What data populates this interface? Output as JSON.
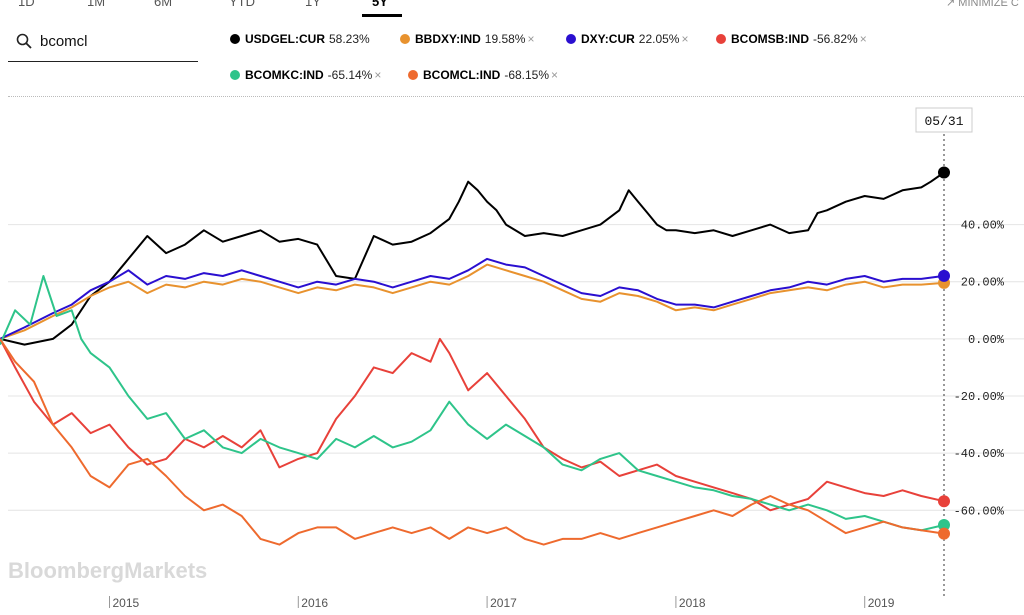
{
  "tabs": [
    {
      "label": "1D",
      "active": false
    },
    {
      "label": "1M",
      "active": false
    },
    {
      "label": "6M",
      "active": false
    },
    {
      "label": "YTD",
      "active": false
    },
    {
      "label": "1Y",
      "active": false
    },
    {
      "label": "5Y",
      "active": true
    }
  ],
  "minimize_label": "MINIMIZE C",
  "search": {
    "value": "bcomcl"
  },
  "legend": [
    {
      "ticker": "USDGEL:CUR",
      "value": "58.23%",
      "color": "#000000",
      "removable": false
    },
    {
      "ticker": "BBDXY:IND",
      "value": "19.58%",
      "color": "#e8922e",
      "removable": true
    },
    {
      "ticker": "DXY:CUR",
      "value": "22.05%",
      "color": "#2a0fd0",
      "removable": true
    },
    {
      "ticker": "BCOMSB:IND",
      "value": "-56.82%",
      "color": "#e8413a",
      "removable": true
    },
    {
      "ticker": "BCOMKC:IND",
      "value": "-65.14%",
      "color": "#2ec48a",
      "removable": true
    },
    {
      "ticker": "BCOMCL:IND",
      "value": "-68.15%",
      "color": "#ee6a2e",
      "removable": true
    }
  ],
  "close_glyph": "×",
  "watermark": "BloombergMarkets",
  "date_marker": "05/31",
  "chart_data": {
    "type": "line",
    "x_ticks": [
      {
        "label": "2015",
        "x": 2015.0
      },
      {
        "label": "2016",
        "x": 2016.0
      },
      {
        "label": "2017",
        "x": 2017.0
      },
      {
        "label": "2018",
        "x": 2018.0
      },
      {
        "label": "2019",
        "x": 2019.0
      }
    ],
    "y_ticks": [
      {
        "label": "40.00%",
        "y": 40
      },
      {
        "label": "20.00%",
        "y": 20
      },
      {
        "label": "0.00%",
        "y": 0
      },
      {
        "label": "-20.00%",
        "y": -20
      },
      {
        "label": "-40.00%",
        "y": -40
      },
      {
        "label": "-60.00%",
        "y": -60
      }
    ],
    "xlim": [
      2014.42,
      2019.42
    ],
    "ylim": [
      -90,
      85
    ],
    "grid": true,
    "series": [
      {
        "name": "USDGEL:CUR",
        "color": "#000000",
        "x": [
          2014.42,
          2014.55,
          2014.7,
          2014.8,
          2014.9,
          2015.0,
          2015.1,
          2015.2,
          2015.3,
          2015.4,
          2015.5,
          2015.6,
          2015.7,
          2015.8,
          2015.9,
          2016.0,
          2016.1,
          2016.2,
          2016.3,
          2016.4,
          2016.5,
          2016.6,
          2016.7,
          2016.8,
          2016.85,
          2016.9,
          2016.95,
          2017.0,
          2017.05,
          2017.1,
          2017.2,
          2017.3,
          2017.4,
          2017.5,
          2017.6,
          2017.7,
          2017.75,
          2017.8,
          2017.85,
          2017.9,
          2017.95,
          2018.0,
          2018.1,
          2018.2,
          2018.3,
          2018.4,
          2018.5,
          2018.6,
          2018.7,
          2018.75,
          2018.8,
          2018.9,
          2019.0,
          2019.1,
          2019.2,
          2019.3,
          2019.35,
          2019.42
        ],
        "y": [
          0,
          -2,
          0,
          5,
          15,
          20,
          28,
          36,
          30,
          33,
          38,
          34,
          36,
          38,
          34,
          35,
          33,
          22,
          21,
          36,
          33,
          34,
          37,
          42,
          48,
          55,
          52,
          48,
          45,
          40,
          36,
          37,
          36,
          38,
          40,
          45,
          52,
          48,
          44,
          40,
          38,
          38,
          37,
          38,
          36,
          38,
          40,
          37,
          38,
          44,
          45,
          48,
          50,
          49,
          52,
          53,
          55,
          58.23
        ]
      },
      {
        "name": "BBDXY:IND",
        "color": "#e8922e",
        "x": [
          2014.42,
          2014.55,
          2014.7,
          2014.8,
          2014.9,
          2015.0,
          2015.1,
          2015.2,
          2015.3,
          2015.4,
          2015.5,
          2015.6,
          2015.7,
          2015.8,
          2015.9,
          2016.0,
          2016.1,
          2016.2,
          2016.3,
          2016.4,
          2016.5,
          2016.6,
          2016.7,
          2016.8,
          2016.9,
          2017.0,
          2017.1,
          2017.2,
          2017.3,
          2017.4,
          2017.5,
          2017.6,
          2017.7,
          2017.8,
          2017.9,
          2018.0,
          2018.1,
          2018.2,
          2018.3,
          2018.4,
          2018.5,
          2018.6,
          2018.7,
          2018.8,
          2018.9,
          2019.0,
          2019.1,
          2019.2,
          2019.3,
          2019.42
        ],
        "y": [
          0,
          3,
          8,
          11,
          15,
          18,
          20,
          16,
          19,
          18,
          20,
          19,
          21,
          20,
          18,
          16,
          18,
          17,
          19,
          18,
          16,
          18,
          20,
          19,
          22,
          26,
          24,
          22,
          20,
          17,
          14,
          13,
          16,
          15,
          13,
          10,
          11,
          10,
          12,
          14,
          16,
          17,
          18,
          17,
          19,
          20,
          18,
          19,
          19,
          19.58
        ]
      },
      {
        "name": "DXY:CUR",
        "color": "#2a0fd0",
        "x": [
          2014.42,
          2014.55,
          2014.7,
          2014.8,
          2014.9,
          2015.0,
          2015.1,
          2015.2,
          2015.3,
          2015.4,
          2015.5,
          2015.6,
          2015.7,
          2015.8,
          2015.9,
          2016.0,
          2016.1,
          2016.2,
          2016.3,
          2016.4,
          2016.5,
          2016.6,
          2016.7,
          2016.8,
          2016.9,
          2017.0,
          2017.1,
          2017.2,
          2017.3,
          2017.4,
          2017.5,
          2017.6,
          2017.7,
          2017.8,
          2017.9,
          2018.0,
          2018.1,
          2018.2,
          2018.3,
          2018.4,
          2018.5,
          2018.6,
          2018.7,
          2018.8,
          2018.9,
          2019.0,
          2019.1,
          2019.2,
          2019.3,
          2019.42
        ],
        "y": [
          0,
          4,
          9,
          12,
          17,
          20,
          24,
          19,
          22,
          21,
          23,
          22,
          24,
          22,
          20,
          18,
          20,
          19,
          21,
          20,
          18,
          20,
          22,
          21,
          24,
          28,
          26,
          25,
          22,
          19,
          16,
          15,
          18,
          17,
          14,
          12,
          12,
          11,
          13,
          15,
          17,
          18,
          20,
          19,
          21,
          22,
          20,
          21,
          21,
          22.05
        ]
      },
      {
        "name": "BCOMSB:IND",
        "color": "#e8413a",
        "x": [
          2014.42,
          2014.5,
          2014.6,
          2014.7,
          2014.8,
          2014.9,
          2015.0,
          2015.1,
          2015.2,
          2015.3,
          2015.4,
          2015.5,
          2015.6,
          2015.7,
          2015.8,
          2015.9,
          2016.0,
          2016.1,
          2016.2,
          2016.3,
          2016.4,
          2016.5,
          2016.6,
          2016.7,
          2016.75,
          2016.8,
          2016.9,
          2017.0,
          2017.1,
          2017.2,
          2017.3,
          2017.4,
          2017.5,
          2017.6,
          2017.7,
          2017.8,
          2017.9,
          2018.0,
          2018.1,
          2018.2,
          2018.3,
          2018.4,
          2018.5,
          2018.6,
          2018.7,
          2018.8,
          2018.9,
          2019.0,
          2019.1,
          2019.2,
          2019.3,
          2019.42
        ],
        "y": [
          0,
          -10,
          -22,
          -30,
          -26,
          -33,
          -30,
          -38,
          -44,
          -42,
          -35,
          -38,
          -34,
          -38,
          -32,
          -45,
          -42,
          -40,
          -28,
          -20,
          -10,
          -12,
          -5,
          -8,
          0,
          -5,
          -18,
          -12,
          -20,
          -28,
          -38,
          -42,
          -45,
          -43,
          -48,
          -46,
          -44,
          -48,
          -50,
          -52,
          -54,
          -56,
          -60,
          -58,
          -56,
          -50,
          -52,
          -54,
          -55,
          -53,
          -55,
          -56.82
        ]
      },
      {
        "name": "BCOMKC:IND",
        "color": "#2ec48a",
        "x": [
          2014.42,
          2014.5,
          2014.58,
          2014.65,
          2014.72,
          2014.8,
          2014.85,
          2014.9,
          2015.0,
          2015.1,
          2015.2,
          2015.3,
          2015.4,
          2015.5,
          2015.6,
          2015.7,
          2015.8,
          2015.9,
          2016.0,
          2016.1,
          2016.2,
          2016.3,
          2016.4,
          2016.5,
          2016.6,
          2016.7,
          2016.8,
          2016.9,
          2017.0,
          2017.1,
          2017.2,
          2017.3,
          2017.4,
          2017.5,
          2017.6,
          2017.7,
          2017.8,
          2017.9,
          2018.0,
          2018.1,
          2018.2,
          2018.3,
          2018.4,
          2018.5,
          2018.6,
          2018.7,
          2018.8,
          2018.9,
          2019.0,
          2019.1,
          2019.2,
          2019.3,
          2019.42
        ],
        "y": [
          -2,
          10,
          5,
          22,
          8,
          10,
          0,
          -5,
          -10,
          -20,
          -28,
          -26,
          -35,
          -32,
          -38,
          -40,
          -35,
          -38,
          -40,
          -42,
          -35,
          -38,
          -34,
          -38,
          -36,
          -32,
          -22,
          -30,
          -35,
          -30,
          -34,
          -38,
          -44,
          -46,
          -42,
          -40,
          -46,
          -48,
          -50,
          -52,
          -53,
          -55,
          -56,
          -58,
          -60,
          -58,
          -60,
          -63,
          -62,
          -64,
          -66,
          -67,
          -65.14
        ]
      },
      {
        "name": "BCOMCL:IND",
        "color": "#ee6a2e",
        "x": [
          2014.42,
          2014.5,
          2014.6,
          2014.7,
          2014.8,
          2014.9,
          2015.0,
          2015.1,
          2015.2,
          2015.3,
          2015.4,
          2015.5,
          2015.6,
          2015.7,
          2015.8,
          2015.9,
          2016.0,
          2016.1,
          2016.2,
          2016.3,
          2016.4,
          2016.5,
          2016.6,
          2016.7,
          2016.8,
          2016.9,
          2017.0,
          2017.1,
          2017.2,
          2017.3,
          2017.4,
          2017.5,
          2017.6,
          2017.7,
          2017.8,
          2017.9,
          2018.0,
          2018.1,
          2018.2,
          2018.3,
          2018.4,
          2018.5,
          2018.6,
          2018.7,
          2018.8,
          2018.9,
          2019.0,
          2019.1,
          2019.2,
          2019.3,
          2019.42
        ],
        "y": [
          0,
          -8,
          -15,
          -30,
          -38,
          -48,
          -52,
          -44,
          -42,
          -48,
          -55,
          -60,
          -58,
          -62,
          -70,
          -72,
          -68,
          -66,
          -66,
          -70,
          -68,
          -66,
          -68,
          -66,
          -70,
          -66,
          -68,
          -66,
          -70,
          -72,
          -70,
          -70,
          -68,
          -70,
          -68,
          -66,
          -64,
          -62,
          -60,
          -62,
          -58,
          -55,
          -58,
          -60,
          -64,
          -68,
          -66,
          -64,
          -66,
          -67,
          -68.15
        ]
      }
    ]
  }
}
